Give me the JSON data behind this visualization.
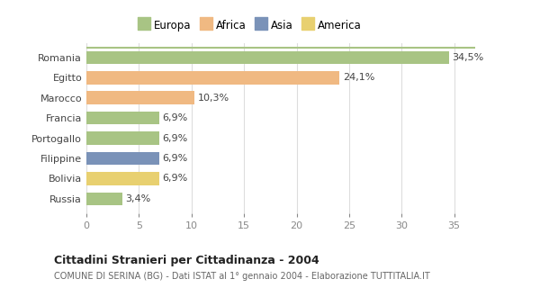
{
  "categories": [
    "Romania",
    "Egitto",
    "Marocco",
    "Francia",
    "Portogallo",
    "Filippine",
    "Bolivia",
    "Russia"
  ],
  "values": [
    34.5,
    24.1,
    10.3,
    6.9,
    6.9,
    6.9,
    6.9,
    3.4
  ],
  "labels": [
    "34,5%",
    "24,1%",
    "10,3%",
    "6,9%",
    "6,9%",
    "6,9%",
    "6,9%",
    "3,4%"
  ],
  "colors": [
    "#a8c484",
    "#f0b982",
    "#f0b982",
    "#a8c484",
    "#a8c484",
    "#7a92b8",
    "#e8d070",
    "#a8c484"
  ],
  "legend": [
    {
      "label": "Europa",
      "color": "#a8c484"
    },
    {
      "label": "Africa",
      "color": "#f0b982"
    },
    {
      "label": "Asia",
      "color": "#7a92b8"
    },
    {
      "label": "America",
      "color": "#e8d070"
    }
  ],
  "xlim": [
    0,
    37
  ],
  "xticks": [
    0,
    5,
    10,
    15,
    20,
    25,
    30,
    35
  ],
  "title": "Cittadini Stranieri per Cittadinanza - 2004",
  "subtitle": "COMUNE DI SERINA (BG) - Dati ISTAT al 1° gennaio 2004 - Elaborazione TUTTITALIA.IT",
  "bg_color": "#ffffff",
  "plot_bg_color": "#ffffff",
  "grid_color": "#dddddd",
  "bar_height": 0.65,
  "label_fontsize": 8,
  "ytick_fontsize": 8,
  "xtick_fontsize": 8
}
